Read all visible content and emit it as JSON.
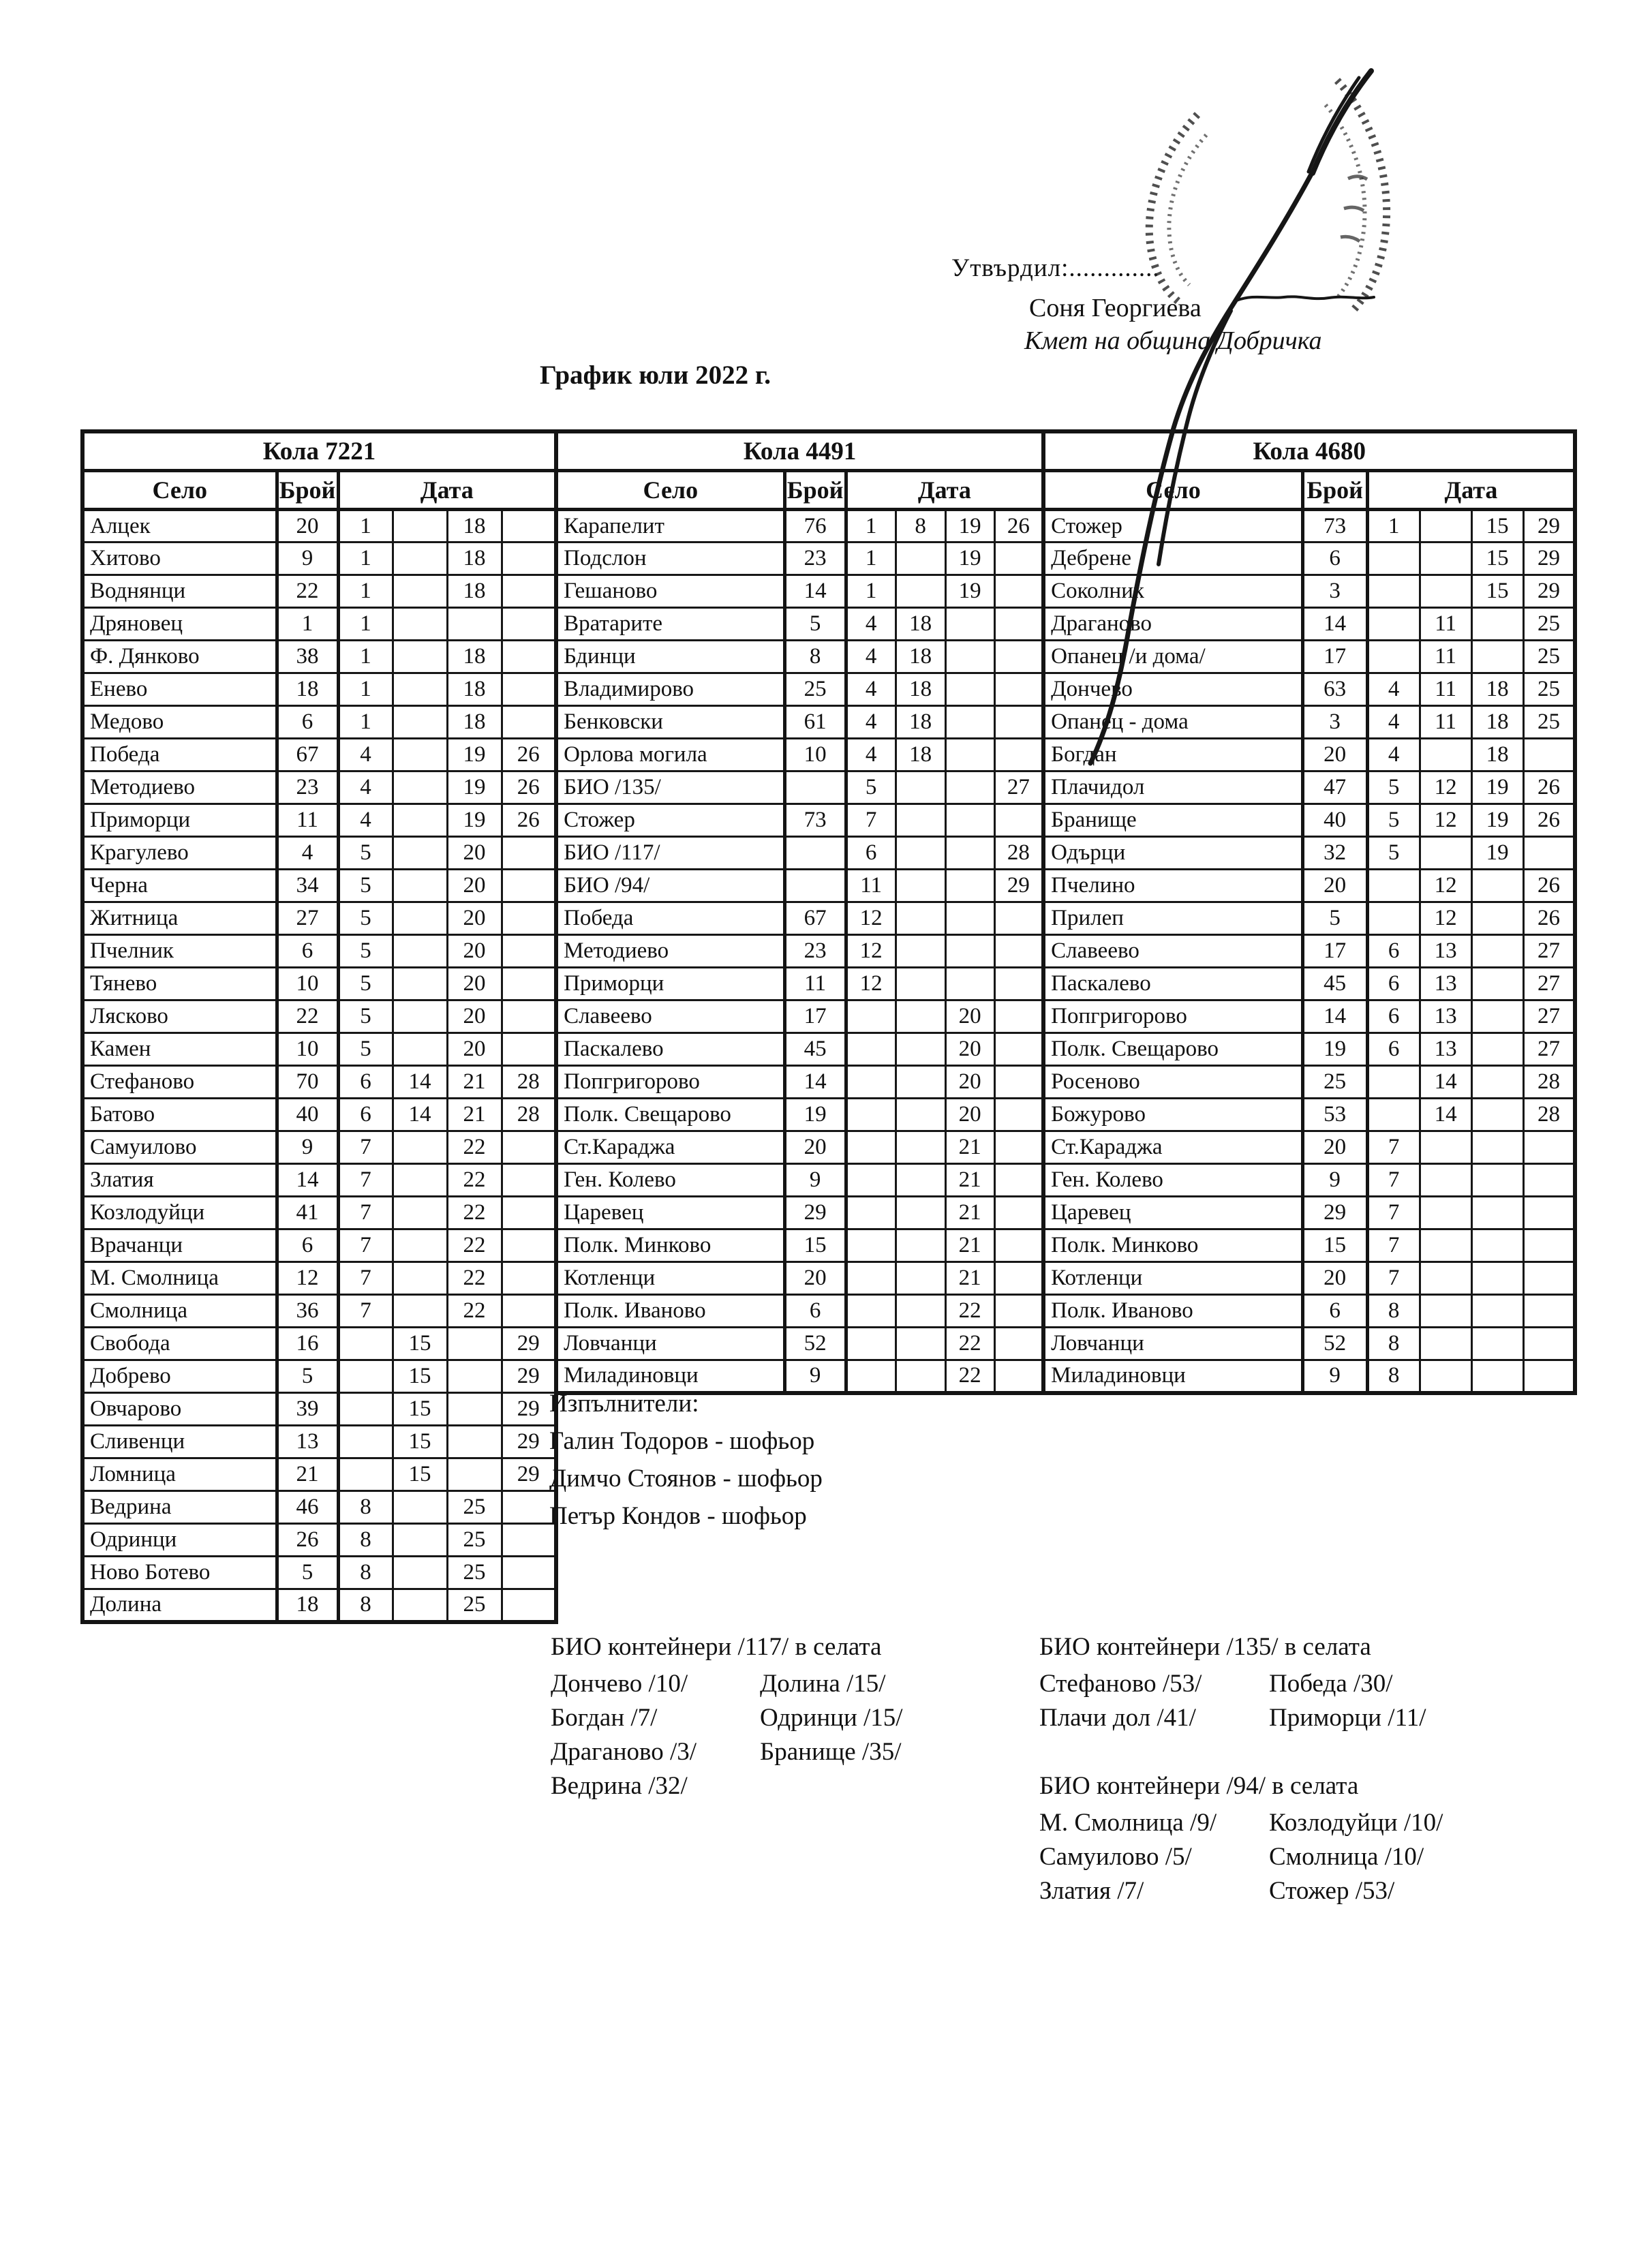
{
  "approval": {
    "label": "Утвърдил:.............",
    "name": "Соня Георгиева",
    "role": "Кмет  на община Добричка"
  },
  "title": "График юли 2022 г.",
  "columns": {
    "village": "Село",
    "count": "Брой",
    "date": "Дата"
  },
  "tables": [
    {
      "car": "Кола 7221",
      "rows": [
        {
          "village": "Алцек",
          "count": "20",
          "dates": [
            "1",
            "",
            "18",
            ""
          ]
        },
        {
          "village": "Хитово",
          "count": "9",
          "dates": [
            "1",
            "",
            "18",
            ""
          ]
        },
        {
          "village": "Воднянци",
          "count": "22",
          "dates": [
            "1",
            "",
            "18",
            ""
          ]
        },
        {
          "village": "Дряновец",
          "count": "1",
          "dates": [
            "1",
            "",
            "",
            ""
          ]
        },
        {
          "village": "Ф. Дянково",
          "count": "38",
          "dates": [
            "1",
            "",
            "18",
            ""
          ]
        },
        {
          "village": "Енево",
          "count": "18",
          "dates": [
            "1",
            "",
            "18",
            ""
          ]
        },
        {
          "village": "Медово",
          "count": "6",
          "dates": [
            "1",
            "",
            "18",
            ""
          ]
        },
        {
          "village": "Победа",
          "count": "67",
          "dates": [
            "4",
            "",
            "19",
            "26"
          ]
        },
        {
          "village": "Методиево",
          "count": "23",
          "dates": [
            "4",
            "",
            "19",
            "26"
          ]
        },
        {
          "village": "Приморци",
          "count": "11",
          "dates": [
            "4",
            "",
            "19",
            "26"
          ]
        },
        {
          "village": "Крагулево",
          "count": "4",
          "dates": [
            "5",
            "",
            "20",
            ""
          ]
        },
        {
          "village": "Черна",
          "count": "34",
          "dates": [
            "5",
            "",
            "20",
            ""
          ]
        },
        {
          "village": "Житница",
          "count": "27",
          "dates": [
            "5",
            "",
            "20",
            ""
          ]
        },
        {
          "village": "Пчелник",
          "count": "6",
          "dates": [
            "5",
            "",
            "20",
            ""
          ]
        },
        {
          "village": "Тянево",
          "count": "10",
          "dates": [
            "5",
            "",
            "20",
            ""
          ]
        },
        {
          "village": "Лясково",
          "count": "22",
          "dates": [
            "5",
            "",
            "20",
            ""
          ]
        },
        {
          "village": "Камен",
          "count": "10",
          "dates": [
            "5",
            "",
            "20",
            ""
          ]
        },
        {
          "village": "Стефаново",
          "count": "70",
          "dates": [
            "6",
            "14",
            "21",
            "28"
          ]
        },
        {
          "village": "Батово",
          "count": "40",
          "dates": [
            "6",
            "14",
            "21",
            "28"
          ]
        },
        {
          "village": "Самуилово",
          "count": "9",
          "dates": [
            "7",
            "",
            "22",
            ""
          ]
        },
        {
          "village": "Златия",
          "count": "14",
          "dates": [
            "7",
            "",
            "22",
            ""
          ]
        },
        {
          "village": "Козлодуйци",
          "count": "41",
          "dates": [
            "7",
            "",
            "22",
            ""
          ]
        },
        {
          "village": "Врачанци",
          "count": "6",
          "dates": [
            "7",
            "",
            "22",
            ""
          ]
        },
        {
          "village": "М. Смолница",
          "count": "12",
          "dates": [
            "7",
            "",
            "22",
            ""
          ]
        },
        {
          "village": "Смолница",
          "count": "36",
          "dates": [
            "7",
            "",
            "22",
            ""
          ]
        },
        {
          "village": "Свобода",
          "count": "16",
          "dates": [
            "",
            "15",
            "",
            "29"
          ]
        },
        {
          "village": "Добрево",
          "count": "5",
          "dates": [
            "",
            "15",
            "",
            "29"
          ]
        },
        {
          "village": "Овчарово",
          "count": "39",
          "dates": [
            "",
            "15",
            "",
            "29"
          ]
        },
        {
          "village": "Сливенци",
          "count": "13",
          "dates": [
            "",
            "15",
            "",
            "29"
          ]
        },
        {
          "village": "Ломница",
          "count": "21",
          "dates": [
            "",
            "15",
            "",
            "29"
          ]
        },
        {
          "village": "Ведрина",
          "count": "46",
          "dates": [
            "8",
            "",
            "25",
            ""
          ]
        },
        {
          "village": "Одринци",
          "count": "26",
          "dates": [
            "8",
            "",
            "25",
            ""
          ]
        },
        {
          "village": "Ново Ботево",
          "count": "5",
          "dates": [
            "8",
            "",
            "25",
            ""
          ]
        },
        {
          "village": "Долина",
          "count": "18",
          "dates": [
            "8",
            "",
            "25",
            ""
          ]
        }
      ]
    },
    {
      "car": "Кола 4491",
      "rows": [
        {
          "village": "Карапелит",
          "count": "76",
          "dates": [
            "1",
            "8",
            "19",
            "26"
          ]
        },
        {
          "village": "Подслон",
          "count": "23",
          "dates": [
            "1",
            "",
            "19",
            ""
          ]
        },
        {
          "village": "Гешаново",
          "count": "14",
          "dates": [
            "1",
            "",
            "19",
            ""
          ]
        },
        {
          "village": "Вратарите",
          "count": "5",
          "dates": [
            "4",
            "18",
            "",
            ""
          ]
        },
        {
          "village": "Бдинци",
          "count": "8",
          "dates": [
            "4",
            "18",
            "",
            ""
          ]
        },
        {
          "village": "Владимирово",
          "count": "25",
          "dates": [
            "4",
            "18",
            "",
            ""
          ]
        },
        {
          "village": "Бенковски",
          "count": "61",
          "dates": [
            "4",
            "18",
            "",
            ""
          ]
        },
        {
          "village": "Орлова могила",
          "count": "10",
          "dates": [
            "4",
            "18",
            "",
            ""
          ]
        },
        {
          "village": "БИО /135/",
          "count": "",
          "dates": [
            "5",
            "",
            "",
            "27"
          ]
        },
        {
          "village": "Стожер",
          "count": "73",
          "dates": [
            "7",
            "",
            "",
            ""
          ]
        },
        {
          "village": "БИО /117/",
          "count": "",
          "dates": [
            "6",
            "",
            "",
            "28"
          ]
        },
        {
          "village": "БИО /94/",
          "count": "",
          "dates": [
            "11",
            "",
            "",
            "29"
          ]
        },
        {
          "village": "Победа",
          "count": "67",
          "dates": [
            "12",
            "",
            "",
            ""
          ]
        },
        {
          "village": "Методиево",
          "count": "23",
          "dates": [
            "12",
            "",
            "",
            ""
          ]
        },
        {
          "village": "Приморци",
          "count": "11",
          "dates": [
            "12",
            "",
            "",
            ""
          ]
        },
        {
          "village": "Славеево",
          "count": "17",
          "dates": [
            "",
            "",
            "20",
            ""
          ]
        },
        {
          "village": "Паскалево",
          "count": "45",
          "dates": [
            "",
            "",
            "20",
            ""
          ]
        },
        {
          "village": "Попгригорово",
          "count": "14",
          "dates": [
            "",
            "",
            "20",
            ""
          ]
        },
        {
          "village": "Полк. Свещарово",
          "count": "19",
          "dates": [
            "",
            "",
            "20",
            ""
          ]
        },
        {
          "village": "Ст.Караджа",
          "count": "20",
          "dates": [
            "",
            "",
            "21",
            ""
          ]
        },
        {
          "village": "Ген. Колево",
          "count": "9",
          "dates": [
            "",
            "",
            "21",
            ""
          ]
        },
        {
          "village": "Царевец",
          "count": "29",
          "dates": [
            "",
            "",
            "21",
            ""
          ]
        },
        {
          "village": "Полк. Минково",
          "count": "15",
          "dates": [
            "",
            "",
            "21",
            ""
          ]
        },
        {
          "village": "Котленци",
          "count": "20",
          "dates": [
            "",
            "",
            "21",
            ""
          ]
        },
        {
          "village": "Полк. Иваново",
          "count": "6",
          "dates": [
            "",
            "",
            "22",
            ""
          ]
        },
        {
          "village": "Ловчанци",
          "count": "52",
          "dates": [
            "",
            "",
            "22",
            ""
          ]
        },
        {
          "village": "Миладиновци",
          "count": "9",
          "dates": [
            "",
            "",
            "22",
            ""
          ]
        }
      ]
    },
    {
      "car": "Кола 4680",
      "rows": [
        {
          "village": "Стожер",
          "count": "73",
          "dates": [
            "1",
            "",
            "15",
            "29"
          ]
        },
        {
          "village": "Дебрене",
          "count": "6",
          "dates": [
            "",
            "",
            "15",
            "29"
          ]
        },
        {
          "village": "Соколник",
          "count": "3",
          "dates": [
            "",
            "",
            "15",
            "29"
          ]
        },
        {
          "village": "Драганово",
          "count": "14",
          "dates": [
            "",
            "11",
            "",
            "25"
          ]
        },
        {
          "village": "Опанец /и дома/",
          "count": "17",
          "dates": [
            "",
            "11",
            "",
            "25"
          ]
        },
        {
          "village": "Дончево",
          "count": "63",
          "dates": [
            "4",
            "11",
            "18",
            "25"
          ]
        },
        {
          "village": "Опанец - дома",
          "count": "3",
          "dates": [
            "4",
            "11",
            "18",
            "25"
          ]
        },
        {
          "village": "Богдан",
          "count": "20",
          "dates": [
            "4",
            "",
            "18",
            ""
          ]
        },
        {
          "village": "Плачидол",
          "count": "47",
          "dates": [
            "5",
            "12",
            "19",
            "26"
          ]
        },
        {
          "village": "Бранище",
          "count": "40",
          "dates": [
            "5",
            "12",
            "19",
            "26"
          ]
        },
        {
          "village": "Одърци",
          "count": "32",
          "dates": [
            "5",
            "",
            "19",
            ""
          ]
        },
        {
          "village": "Пчелино",
          "count": "20",
          "dates": [
            "",
            "12",
            "",
            "26"
          ]
        },
        {
          "village": "Прилеп",
          "count": "5",
          "dates": [
            "",
            "12",
            "",
            "26"
          ]
        },
        {
          "village": "Славеево",
          "count": "17",
          "dates": [
            "6",
            "13",
            "",
            "27"
          ]
        },
        {
          "village": "Паскалево",
          "count": "45",
          "dates": [
            "6",
            "13",
            "",
            "27"
          ]
        },
        {
          "village": "Попгригорово",
          "count": "14",
          "dates": [
            "6",
            "13",
            "",
            "27"
          ]
        },
        {
          "village": "Полк. Свещарово",
          "count": "19",
          "dates": [
            "6",
            "13",
            "",
            "27"
          ]
        },
        {
          "village": "Росеново",
          "count": "25",
          "dates": [
            "",
            "14",
            "",
            "28"
          ]
        },
        {
          "village": "Божурово",
          "count": "53",
          "dates": [
            "",
            "14",
            "",
            "28"
          ]
        },
        {
          "village": "Ст.Караджа",
          "count": "20",
          "dates": [
            "7",
            "",
            "",
            ""
          ]
        },
        {
          "village": "Ген. Колево",
          "count": "9",
          "dates": [
            "7",
            "",
            "",
            ""
          ]
        },
        {
          "village": "Царевец",
          "count": "29",
          "dates": [
            "7",
            "",
            "",
            ""
          ]
        },
        {
          "village": "Полк. Минково",
          "count": "15",
          "dates": [
            "7",
            "",
            "",
            ""
          ]
        },
        {
          "village": "Котленци",
          "count": "20",
          "dates": [
            "7",
            "",
            "",
            ""
          ]
        },
        {
          "village": "Полк. Иваново",
          "count": "6",
          "dates": [
            "8",
            "",
            "",
            ""
          ]
        },
        {
          "village": "Ловчанци",
          "count": "52",
          "dates": [
            "8",
            "",
            "",
            ""
          ]
        },
        {
          "village": "Миладиновци",
          "count": "9",
          "dates": [
            "8",
            "",
            "",
            ""
          ]
        }
      ]
    }
  ],
  "executors": {
    "heading": "Изпълнители:",
    "items": [
      "Галин Тодоров - шофьор",
      "Димчо Стоянов - шофьор",
      "Петър Кондов - шофьор"
    ]
  },
  "bio_sections": [
    {
      "heading": "БИО контейнери /117/ в селата",
      "col1": [
        "Дончево /10/",
        "Богдан /7/",
        "Драганово /3/",
        "Ведрина /32/"
      ],
      "col2": [
        "Долина /15/",
        "Одринци /15/",
        "Бранище /35/"
      ]
    },
    {
      "heading": "БИО контейнери /135/ в селата",
      "col1": [
        "Стефаново /53/",
        "Плачи дол /41/"
      ],
      "col2": [
        "Победа /30/",
        "Приморци /11/"
      ]
    },
    {
      "heading": "БИО контейнери /94/ в селата",
      "col1": [
        "М. Смолница /9/",
        "Самуилово /5/",
        "Златия /7/"
      ],
      "col2": [
        "Козлодуйци /10/",
        "Смолница /10/",
        "Стожер /53/"
      ]
    }
  ]
}
